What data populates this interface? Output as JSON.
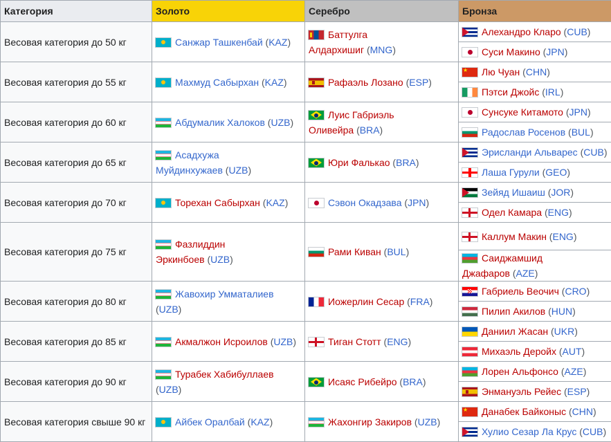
{
  "headers": {
    "category": "Категория",
    "gold": "Золото",
    "silver": "Серебро",
    "bronze": "Бронза"
  },
  "colors": {
    "gold_header": "#f8d307",
    "silver_header": "#c0c0c0",
    "bronze_header": "#cc9966",
    "link_blue": "#3366cc",
    "link_red": "#ba0000"
  },
  "rows": [
    {
      "category": "Весовая категория до 50 кг",
      "gold": {
        "flag": "flag-kaz",
        "name": "Санжар Ташкенбай",
        "name_link": "blue",
        "country": "KAZ"
      },
      "silver": {
        "flag": "flag-mng",
        "name_l1": "Баттулга",
        "name_l2": "Алдархишиг",
        "name_link": "red",
        "country": "MNG"
      },
      "bronze": [
        {
          "flag": "flag-cub",
          "name": "Алехандро Кларо",
          "name_link": "red",
          "country": "CUB"
        },
        {
          "flag": "flag-jpn",
          "name": "Суси Макино",
          "name_link": "red",
          "country": "JPN"
        }
      ]
    },
    {
      "category": "Весовая категория до 55 кг",
      "gold": {
        "flag": "flag-kaz",
        "name": "Махмуд Сабырхан",
        "name_link": "blue",
        "country": "KAZ"
      },
      "silver": {
        "flag": "flag-esp",
        "name": "Рафаэль Лозано",
        "name_link": "red",
        "country": "ESP"
      },
      "bronze": [
        {
          "flag": "flag-chn",
          "name": "Лю Чуан",
          "name_link": "red",
          "country": "CHN"
        },
        {
          "flag": "flag-irl",
          "name": "Пэтси Джойс",
          "name_link": "red",
          "country": "IRL"
        }
      ]
    },
    {
      "category": "Весовая категория до 60 кг",
      "gold": {
        "flag": "flag-uzb",
        "name": "Абдумалик Халоков",
        "name_link": "blue",
        "country": "UZB"
      },
      "silver": {
        "flag": "flag-bra",
        "name_l1": "Луис Габриэль",
        "name_l2": "Оливейра",
        "name_link": "red",
        "country": "BRA"
      },
      "bronze": [
        {
          "flag": "flag-jpn",
          "name": "Сунсуке Китамото",
          "name_link": "red",
          "country": "JPN"
        },
        {
          "flag": "flag-bul",
          "name": "Радослав Росенов",
          "name_link": "blue",
          "country": "BUL"
        }
      ]
    },
    {
      "category": "Весовая категория до 65 кг",
      "gold": {
        "flag": "flag-uzb",
        "name_l1": "Асадхужа",
        "name_l2": "Муйдинхужаев",
        "name_link": "blue",
        "country": "UZB"
      },
      "silver": {
        "flag": "flag-bra",
        "name": "Юри Фалькао",
        "name_link": "red",
        "country": "BRA"
      },
      "bronze": [
        {
          "flag": "flag-cub",
          "name": "Эрисланди Альварес",
          "name_link": "blue",
          "country": "CUB"
        },
        {
          "flag": "flag-geo",
          "name": "Лаша Гурули",
          "name_link": "blue",
          "country": "GEO"
        }
      ]
    },
    {
      "category": "Весовая категория до 70 кг",
      "gold": {
        "flag": "flag-kaz",
        "name": "Торехан Сабырхан",
        "name_link": "red",
        "country": "KAZ"
      },
      "silver": {
        "flag": "flag-jpn",
        "name": "Сэвон Окадзава",
        "name_link": "blue",
        "country": "JPN"
      },
      "bronze": [
        {
          "flag": "flag-jor",
          "name": "Зейяд Ишаиш",
          "name_link": "blue",
          "country": "JOR"
        },
        {
          "flag": "flag-eng",
          "name": "Одел Камара",
          "name_link": "red",
          "country": "ENG"
        }
      ]
    },
    {
      "category": "Весовая категория до 75 кг",
      "gold": {
        "flag": "flag-uzb",
        "name_l1": "Фазлиддин",
        "name_l2": "Эркинбоев",
        "name_link": "red",
        "country": "UZB"
      },
      "silver": {
        "flag": "flag-bul",
        "name": "Рами Киван",
        "name_link": "red",
        "country": "BUL"
      },
      "bronze": [
        {
          "flag": "flag-eng",
          "name": "Каллум Макин",
          "name_link": "red",
          "country": "ENG"
        },
        {
          "flag": "flag-aze",
          "name_l1": "Саиджамшид",
          "name_l2": "Джафаров",
          "name_link": "red",
          "country": "AZE"
        }
      ]
    },
    {
      "category": "Весовая категория до 80 кг",
      "gold": {
        "flag": "flag-uzb",
        "name": "Жавохир Умматалиев",
        "name_link": "blue",
        "country": "UZB"
      },
      "silver": {
        "flag": "flag-fra",
        "name": "Иожерлин Сесар",
        "name_link": "red",
        "country": "FRA"
      },
      "bronze": [
        {
          "flag": "flag-cro",
          "name": "Габриель Веочич",
          "name_link": "red",
          "country": "CRO"
        },
        {
          "flag": "flag-hun",
          "name": "Пилип Акилов",
          "name_link": "red",
          "country": "HUN"
        }
      ]
    },
    {
      "category": "Весовая категория до 85 кг",
      "gold": {
        "flag": "flag-uzb",
        "name": "Акмалжон Исроилов",
        "name_link": "red",
        "country": "UZB"
      },
      "silver": {
        "flag": "flag-eng",
        "name": "Тиган Стотт",
        "name_link": "red",
        "country": "ENG"
      },
      "bronze": [
        {
          "flag": "flag-ukr",
          "name": "Даниил Жасан",
          "name_link": "red",
          "country": "UKR"
        },
        {
          "flag": "flag-aut",
          "name": "Михаэль Деройх",
          "name_link": "red",
          "country": "AUT"
        }
      ]
    },
    {
      "category": "Весовая категория до 90 кг",
      "gold": {
        "flag": "flag-uzb",
        "name": "Турабек Хабибуллаев",
        "name_link": "red",
        "country": "UZB"
      },
      "silver": {
        "flag": "flag-bra",
        "name": "Исаяс Рибейро",
        "name_link": "red",
        "country": "BRA"
      },
      "bronze": [
        {
          "flag": "flag-aze",
          "name": "Лорен Альфонсо",
          "name_link": "red",
          "country": "AZE"
        },
        {
          "flag": "flag-esp",
          "name": "Энмануэль Рейес",
          "name_link": "red",
          "country": "ESP"
        }
      ]
    },
    {
      "category": "Весовая категория свыше 90 кг",
      "gold": {
        "flag": "flag-kaz",
        "name": "Айбек Оралбай",
        "name_link": "blue",
        "country": "KAZ"
      },
      "silver": {
        "flag": "flag-uzb",
        "name": "Жахонгир Закиров",
        "name_link": "red",
        "country": "UZB"
      },
      "bronze": [
        {
          "flag": "flag-chn",
          "name": "Данабек Байконыс",
          "name_link": "red",
          "country": "CHN"
        },
        {
          "flag": "flag-cub",
          "name": "Хулио Сезар Ла Крус",
          "name_link": "blue",
          "country": "CUB"
        }
      ]
    }
  ]
}
